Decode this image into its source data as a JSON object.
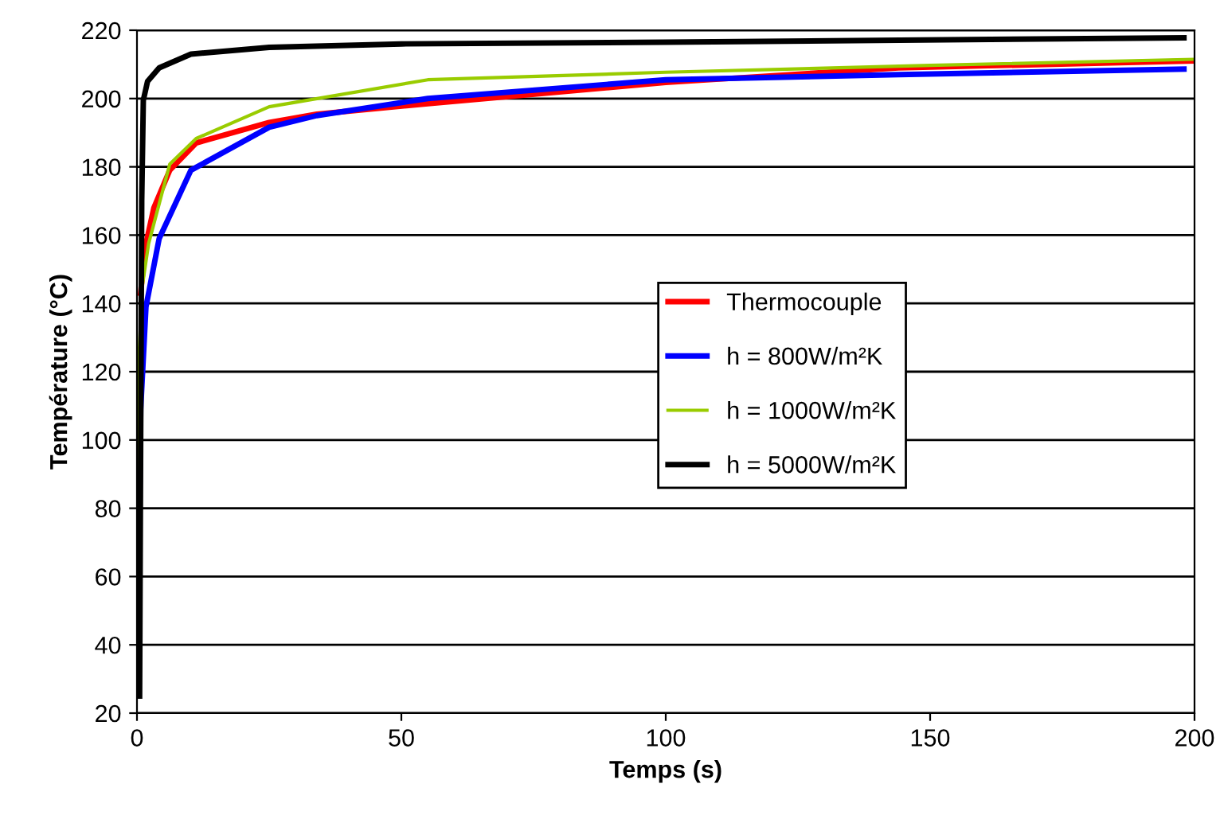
{
  "chart_data": {
    "type": "line",
    "xlabel": "Temps (s)",
    "ylabel": "Température (°C)",
    "xlim": [
      0,
      200
    ],
    "ylim": [
      20,
      220
    ],
    "xticks": [
      0,
      50,
      100,
      150,
      200
    ],
    "yticks": [
      20,
      40,
      60,
      80,
      100,
      120,
      140,
      160,
      180,
      200,
      220
    ],
    "grid": "y",
    "legend": "right",
    "marker": "none",
    "line_style": "solid",
    "series": [
      {
        "name": "Thermocouple",
        "color": "#ff0000",
        "x": [
          0.7,
          1.5,
          3.2,
          6.2,
          11.2,
          25,
          34,
          55,
          100,
          144,
          200
        ],
        "values": [
          143,
          156,
          168,
          179,
          187,
          193,
          195.4,
          198.5,
          204.7,
          209,
          211
        ]
      },
      {
        "name": "h = 800W/m²K",
        "color": "#0000ff",
        "x": [
          0.5,
          0.7,
          1.7,
          4.2,
          10.2,
          25,
          34,
          55,
          100,
          144,
          198
        ],
        "values": [
          80,
          109,
          139,
          159,
          179,
          191.6,
          195,
          200,
          205.5,
          207,
          208.6
        ]
      },
      {
        "name": "h = 1000W/m²K",
        "color": "#99cc00",
        "x": [
          0.2,
          0.4,
          1,
          2.2,
          6.2,
          11.2,
          25,
          55,
          100,
          150,
          200
        ],
        "values": [
          80,
          125,
          145,
          157.5,
          180.8,
          188.3,
          197.6,
          205.5,
          207.7,
          209.7,
          211.5
        ]
      },
      {
        "name": "h = 5000W/m²K",
        "color": "#000000",
        "x": [
          0.5,
          0.7,
          0.9,
          1.2,
          2,
          4.2,
          10.2,
          25,
          50,
          100,
          198
        ],
        "values": [
          25,
          100,
          170,
          199.5,
          205,
          209,
          213,
          215,
          216,
          216.5,
          217.8
        ]
      }
    ]
  }
}
